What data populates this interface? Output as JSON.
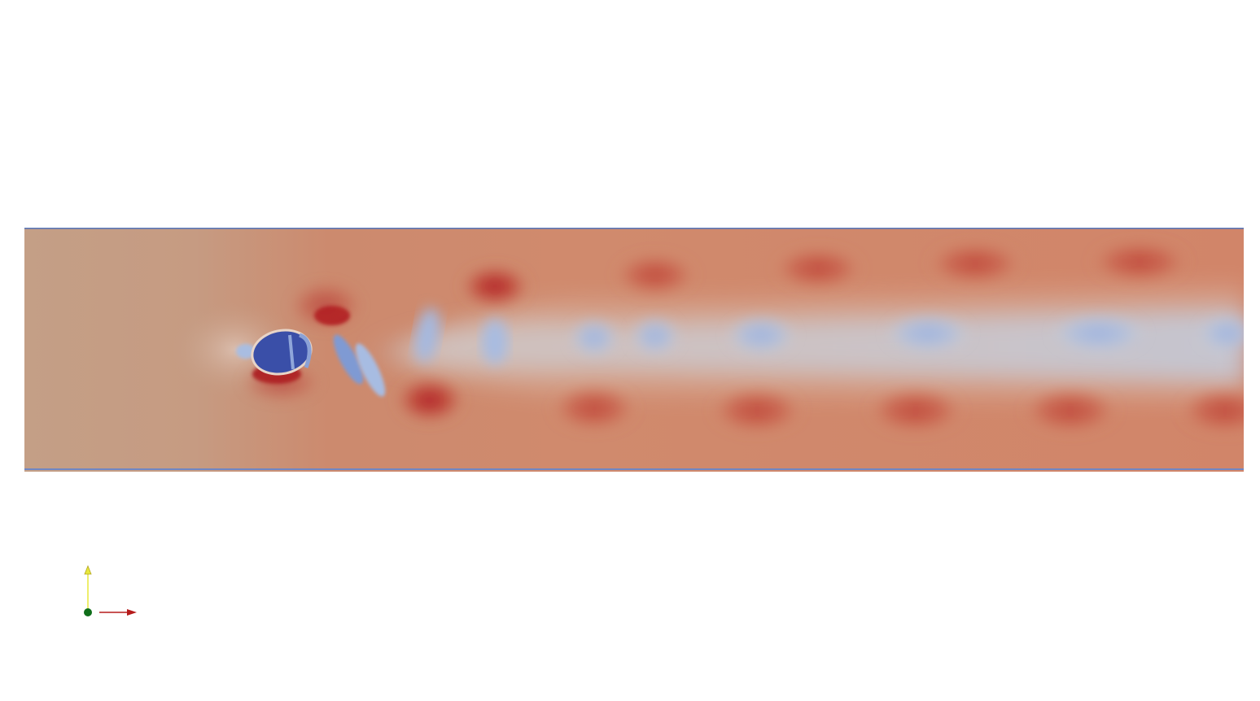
{
  "scene": {
    "background_color": "#ffffff",
    "field": {
      "colormap": "cool-to-warm",
      "colors": {
        "freestream": "#c49f86",
        "warm": "#cf8067",
        "hot": "#b5302b",
        "cool": "#a9bde1",
        "cold": "#3a4fa8",
        "wall_line": "#5b78b8"
      }
    },
    "orientation_axes": {
      "x_axis_color": "#b51b1b",
      "y_axis_color": "#e8e83a",
      "origin_color": "#0f6e1a",
      "icons": [
        "x-axis-arrow",
        "y-axis-arrow",
        "origin-point"
      ]
    }
  }
}
